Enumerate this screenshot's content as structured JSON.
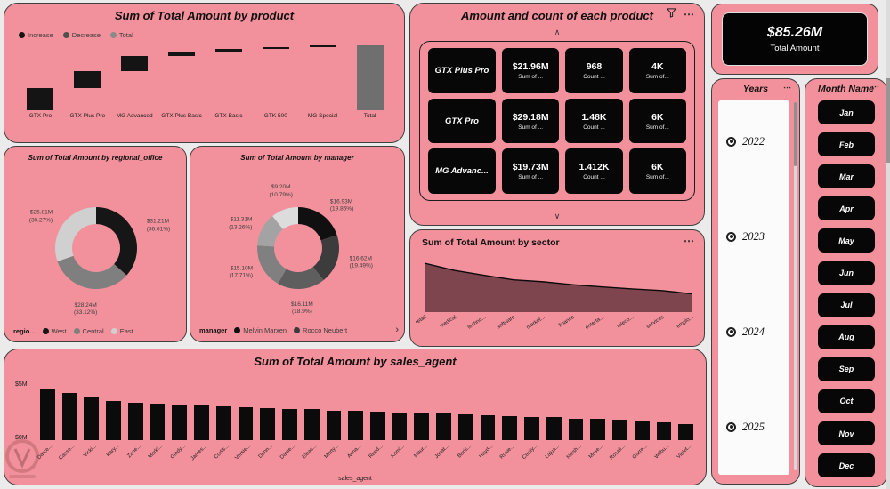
{
  "theme": {
    "page_bg": "#ebebeb",
    "card_bg": "#f2919b",
    "card_border": "#3f3f3f",
    "panel_black": "#070707",
    "white": "#ffffff"
  },
  "icons": {
    "more": "⋯",
    "chevron_up": "∧",
    "chevron_down": "∨",
    "chevron_right": "›"
  },
  "total_card": {
    "value": "$85.26M",
    "label": "Total Amount"
  },
  "years_slicer": {
    "title": "Years",
    "options": [
      "2022",
      "2023",
      "2024",
      "2025"
    ]
  },
  "month_slicer": {
    "title": "Month Name",
    "options": [
      "Jan",
      "Feb",
      "Mar",
      "Apr",
      "May",
      "Jun",
      "Jul",
      "Aug",
      "Sep",
      "Oct",
      "Nov",
      "Dec"
    ]
  },
  "chart_data": [
    {
      "id": "waterfall",
      "type": "bar",
      "subtype": "waterfall",
      "title": "Sum of Total Amount by product",
      "categories": [
        "GTX Pro",
        "GTX Plus Pro",
        "MG Advanced",
        "GTX Plus Basic",
        "GTX Basic",
        "GTK 500",
        "MG Special",
        "Total"
      ],
      "values": [
        29.18,
        21.96,
        19.73,
        6.5,
        3.5,
        2.4,
        1.99,
        85.26
      ],
      "unit": "$M",
      "legend": [
        {
          "label": "Increase",
          "color": "#141414"
        },
        {
          "label": "Decrease",
          "color": "#4f4f4f"
        },
        {
          "label": "Total",
          "color": "#8a8a8a"
        }
      ],
      "colors": {
        "increase": "#141414",
        "decrease": "#4f4f4f",
        "total": "#6f6f6f"
      },
      "ylim": [
        0,
        85.26
      ]
    },
    {
      "id": "donut_regional",
      "type": "pie",
      "title": "Sum of Total Amount by regional_office",
      "legend_title": "regio...",
      "slices": [
        {
          "label": "West",
          "value": 31.21,
          "value_text": "$31.21M",
          "pct_text": "(36.61%)",
          "color": "#161616"
        },
        {
          "label": "Central",
          "value": 28.24,
          "value_text": "$28.24M",
          "pct_text": "(33.12%)",
          "color": "#7f7f7f"
        },
        {
          "label": "East",
          "value": 25.81,
          "value_text": "$25.81M",
          "pct_text": "(30.27%)",
          "color": "#d0d0d0"
        }
      ],
      "legend": [
        {
          "label": "West",
          "color": "#161616"
        },
        {
          "label": "Central",
          "color": "#7f7f7f"
        },
        {
          "label": "East",
          "color": "#d0d0d0"
        }
      ]
    },
    {
      "id": "donut_manager",
      "type": "pie",
      "title": "Sum of Total Amount by manager",
      "legend_title": "manager",
      "slices": [
        {
          "label": "Melvin Marxen",
          "value": 16.93,
          "value_text": "$16.93M",
          "pct_text": "(19.86%)",
          "color": "#101010"
        },
        {
          "label": "Rocco Neubert",
          "value": 16.62,
          "value_text": "$16.62M",
          "pct_text": "(19.49%)",
          "color": "#3c3c3c"
        },
        {
          "label": "",
          "value": 16.11,
          "value_text": "$16.11M",
          "pct_text": "(18.9%)",
          "color": "#5e5e5e"
        },
        {
          "label": "",
          "value": 15.1,
          "value_text": "$15.10M",
          "pct_text": "(17.71%)",
          "color": "#808080"
        },
        {
          "label": "",
          "value": 11.31,
          "value_text": "$11.31M",
          "pct_text": "(13.26%)",
          "color": "#a3a3a3"
        },
        {
          "label": "",
          "value": 9.2,
          "value_text": "$9.20M",
          "pct_text": "(10.79%)",
          "color": "#dcdcdc"
        }
      ],
      "legend": [
        {
          "label": "Melvin Marxen",
          "color": "#101010"
        },
        {
          "label": "Rocco Neubert",
          "color": "#3c3c3c"
        }
      ]
    },
    {
      "id": "matrix",
      "type": "table",
      "title": "Amount and count of each product",
      "rows": [
        {
          "product": "GTX Plus Pro",
          "cells": [
            {
              "value": "$21.96M",
              "caption": "Sum of ..."
            },
            {
              "value": "968",
              "caption": "Count ..."
            },
            {
              "value": "4K",
              "caption": "Sum of..."
            }
          ]
        },
        {
          "product": "GTX Pro",
          "cells": [
            {
              "value": "$29.18M",
              "caption": "Sum of ..."
            },
            {
              "value": "1.48K",
              "caption": "Count ..."
            },
            {
              "value": "6K",
              "caption": "Sum of..."
            }
          ]
        },
        {
          "product": "MG Advanc...",
          "cells": [
            {
              "value": "$19.73M",
              "caption": "Sum of ..."
            },
            {
              "value": "1.412K",
              "caption": "Count ..."
            },
            {
              "value": "6K",
              "caption": "Sum of..."
            }
          ]
        }
      ]
    },
    {
      "id": "sector_area",
      "type": "area",
      "title": "Sum of Total Amount by sector",
      "categories": [
        "retail",
        "medical",
        "techno...",
        "software",
        "market...",
        "finance",
        "enterta...",
        "teleco...",
        "services",
        "emplo..."
      ],
      "values": [
        14.2,
        12.0,
        10.5,
        9.1,
        8.5,
        7.6,
        6.9,
        6.3,
        5.8,
        4.8
      ],
      "unit": "$M"
    },
    {
      "id": "sales_bar",
      "type": "bar",
      "title": "Sum of Total Amount by sales_agent",
      "xlabel": "sales_agent",
      "y_max_label": "$5M",
      "y_min_label": "$0M",
      "ylim": [
        0,
        5.2
      ],
      "categories": [
        "Darce...",
        "Casse...",
        "Vicki...",
        "Kary...",
        "Zane...",
        "Marki...",
        "Glady...",
        "James...",
        "Corlis...",
        "Versie...",
        "Donn...",
        "Danie...",
        "Eleas...",
        "Marty...",
        "Anna...",
        "Reed...",
        "Kami...",
        "Maur...",
        "Jonat...",
        "Boris...",
        "Hayd...",
        "Rosie...",
        "Cecily...",
        "Lajua...",
        "Niesh...",
        "Mose...",
        "Rosali...",
        "Garre...",
        "Wilbu...",
        "Violet..."
      ],
      "values": [
        4.85,
        4.45,
        4.15,
        3.65,
        3.55,
        3.45,
        3.35,
        3.3,
        3.2,
        3.1,
        3.0,
        2.95,
        2.9,
        2.8,
        2.75,
        2.7,
        2.6,
        2.55,
        2.5,
        2.45,
        2.35,
        2.3,
        2.2,
        2.15,
        2.05,
        2.0,
        1.9,
        1.8,
        1.7,
        1.55
      ]
    }
  ]
}
